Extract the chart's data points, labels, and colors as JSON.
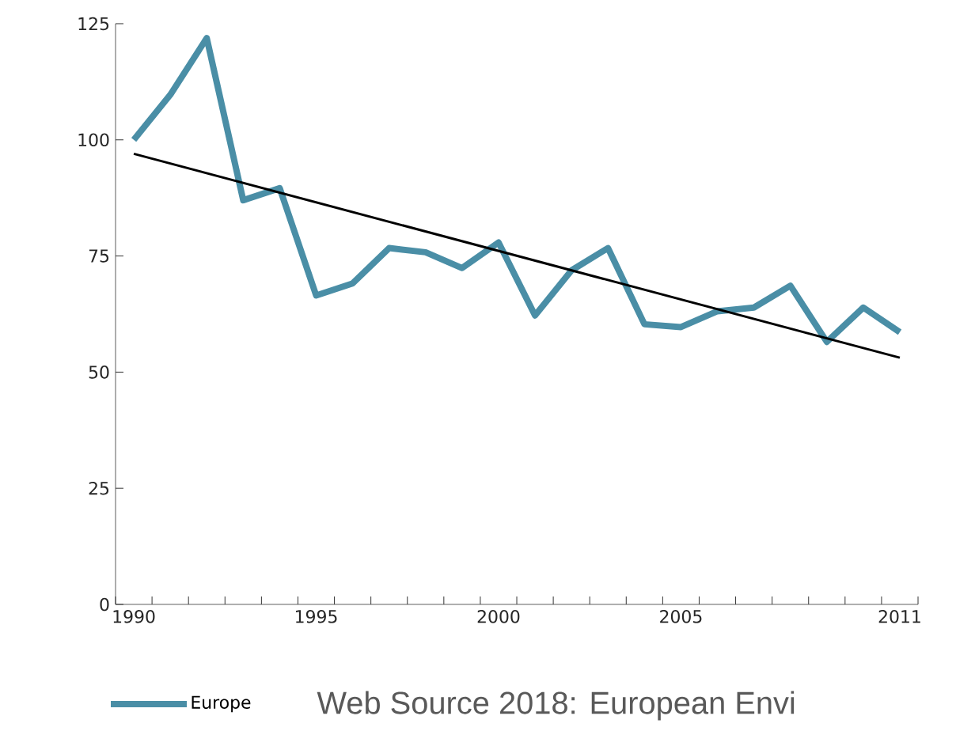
{
  "chart_data": {
    "type": "line",
    "x": [
      1990,
      1991,
      1992,
      1993,
      1994,
      1995,
      1996,
      1997,
      1998,
      1999,
      2000,
      2001,
      2002,
      2003,
      2004,
      2005,
      2006,
      2007,
      2008,
      2009,
      2010,
      2011
    ],
    "series": [
      {
        "name": "Europe",
        "color": "#4a8ea6",
        "values": [
          100,
          109.7,
          121.9,
          87,
          89.6,
          66.5,
          69.1,
          76.7,
          75.8,
          72.4,
          77.9,
          62.2,
          71.9,
          76.7,
          60.3,
          59.7,
          63.1,
          63.9,
          68.6,
          56.5,
          63.9,
          58.6
        ]
      },
      {
        "type": "line",
        "color": "#000000",
        "x": [
          1990,
          2011
        ],
        "values": [
          97,
          53.1
        ]
      }
    ],
    "xlim": [
      1989.5,
      2011.5
    ],
    "xticks": [
      1990,
      1995,
      2000,
      2005,
      2011,
      {
        "value": 1989.5,
        "label": null
      },
      {
        "value": 1990.5,
        "label": null
      },
      {
        "value": 1991.5,
        "label": null
      },
      {
        "value": 1992.5,
        "label": null
      },
      {
        "value": 1993.5,
        "label": null
      },
      {
        "value": 1994.5,
        "label": null
      },
      {
        "value": 1995.5,
        "label": null
      },
      {
        "value": 1996.5,
        "label": null
      },
      {
        "value": 1997.5,
        "label": null
      },
      {
        "value": 1998.5,
        "label": null
      },
      {
        "value": 1999.5,
        "label": null
      },
      {
        "value": 2000.5,
        "label": null
      },
      {
        "value": 2001.5,
        "label": null
      },
      {
        "value": 2002.5,
        "label": null
      },
      {
        "value": 2003.5,
        "label": null
      },
      {
        "value": 2004.5,
        "label": null
      },
      {
        "value": 2005.5,
        "label": null
      },
      {
        "value": 2006.5,
        "label": null
      },
      {
        "value": 2007.5,
        "label": null
      },
      {
        "value": 2008.5,
        "label": null
      },
      {
        "value": 2009.5,
        "label": null
      },
      {
        "value": 2010.5,
        "label": null
      },
      {
        "value": 2011.5,
        "label": null
      }
    ],
    "ylim": [
      0,
      125
    ],
    "yticks": [
      0,
      25,
      50,
      75,
      100,
      125
    ],
    "grid": false,
    "legend": "bottom left",
    "marker": "none",
    "annotations": [
      "Web Source 2018: European Envi"
    ]
  }
}
